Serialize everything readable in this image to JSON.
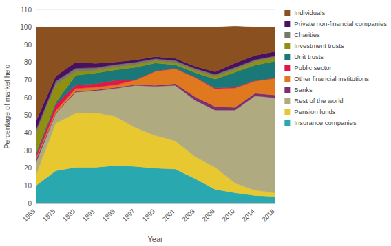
{
  "chart_data": {
    "type": "area",
    "stacked": true,
    "xlabel": "Year",
    "ylabel": "Percentage of market held",
    "categories": [
      "1963",
      "1975",
      "1989",
      "1991",
      "1993",
      "1997",
      "1999",
      "2001",
      "2003",
      "2006",
      "2010",
      "2014",
      "2018"
    ],
    "series": [
      {
        "name": "Insurance companies",
        "color": "#29A8B0",
        "values": [
          10.0,
          18.5,
          20.5,
          20.5,
          21.5,
          21.0,
          20.0,
          19.5,
          14.0,
          8.0,
          6.0,
          4.5,
          4.0
        ]
      },
      {
        "name": "Pension funds",
        "color": "#E8C830",
        "values": [
          6.0,
          27.0,
          30.7,
          31.0,
          27.8,
          22.0,
          18.5,
          16.0,
          12.5,
          12.5,
          5.5,
          3.0,
          2.0
        ]
      },
      {
        "name": "Rest of the world",
        "color": "#B0AA80",
        "values": [
          7.0,
          5.5,
          12.0,
          12.5,
          16.0,
          24.0,
          28.0,
          31.5,
          32.0,
          32.5,
          41.5,
          53.5,
          54.0
        ]
      },
      {
        "name": "Banks",
        "color": "#7B3070",
        "values": [
          1.5,
          0.3,
          0.5,
          0.5,
          0.5,
          0.5,
          0.5,
          1.0,
          2.0,
          2.0,
          1.5,
          1.5,
          1.5
        ]
      },
      {
        "name": "Other financial institutions",
        "color": "#E07820",
        "values": [
          1.0,
          1.5,
          1.5,
          1.5,
          1.5,
          2.5,
          8.0,
          8.5,
          11.0,
          10.0,
          11.0,
          7.0,
          9.5
        ]
      },
      {
        "name": "Public sector",
        "color": "#E0184A",
        "values": [
          1.5,
          3.5,
          2.0,
          2.0,
          2.5,
          0.2,
          0.2,
          0.2,
          0.2,
          0.5,
          0.5,
          0.2,
          0.2
        ]
      },
      {
        "name": "Unit trusts",
        "color": "#1A7878",
        "values": [
          1.3,
          1.0,
          5.5,
          6.0,
          6.0,
          7.0,
          4.5,
          2.0,
          2.5,
          5.0,
          8.5,
          8.8,
          9.5
        ]
      },
      {
        "name": "Investment trusts",
        "color": "#909010",
        "values": [
          11.0,
          10.0,
          2.0,
          1.5,
          1.5,
          1.5,
          1.2,
          1.2,
          1.2,
          1.5,
          1.5,
          2.0,
          2.0
        ]
      },
      {
        "name": "Charities",
        "color": "#787868",
        "values": [
          2.1,
          2.0,
          2.0,
          1.5,
          1.5,
          1.5,
          1.2,
          1.2,
          1.2,
          1.2,
          1.2,
          1.0,
          1.0
        ]
      },
      {
        "name": "Private non-financial companies",
        "color": "#4A1060",
        "values": [
          5.0,
          3.0,
          3.5,
          2.5,
          1.5,
          1.2,
          1.2,
          1.2,
          1.2,
          1.5,
          2.5,
          2.5,
          2.5
        ]
      },
      {
        "name": "Individuals",
        "color": "#8B5020",
        "values": [
          53.6,
          27.7,
          19.8,
          20.5,
          19.7,
          18.6,
          16.7,
          17.7,
          22.2,
          25.3,
          20.8,
          16.0,
          13.8
        ]
      }
    ],
    "ylim": [
      0,
      110
    ],
    "yticks": [
      0,
      10,
      20,
      30,
      40,
      50,
      60,
      70,
      80,
      90,
      100,
      110
    ],
    "grid": true,
    "legend": "right"
  }
}
